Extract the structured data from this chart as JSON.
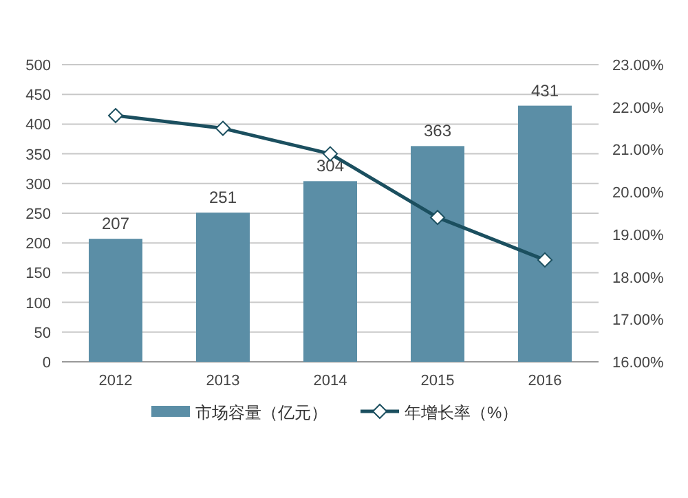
{
  "chart_data": {
    "type": "bar",
    "categories": [
      "2012",
      "2013",
      "2014",
      "2015",
      "2016"
    ],
    "series": [
      {
        "name": "市场容量（亿元）",
        "color": "#5b8ea6",
        "values": [
          207,
          251,
          304,
          363,
          431
        ],
        "value_labels": [
          "207",
          "251",
          "304",
          "363",
          "431"
        ]
      },
      {
        "name": "年增长率（%）",
        "type": "line",
        "axis": "y2",
        "color": "#1b4f5f",
        "marker": "diamond",
        "values": [
          21.8,
          21.5,
          20.9,
          19.4,
          18.4
        ]
      }
    ],
    "ylim": [
      0,
      500
    ],
    "yticks": [
      0,
      50,
      100,
      150,
      200,
      250,
      300,
      350,
      400,
      450,
      500
    ],
    "y2lim": [
      16,
      23
    ],
    "y2ticks": [
      {
        "value": 16,
        "label": "16.00%"
      },
      {
        "value": 17,
        "label": "17.00%"
      },
      {
        "value": 18,
        "label": "18.00%"
      },
      {
        "value": 19,
        "label": "19.00%"
      },
      {
        "value": 20,
        "label": "20.00%"
      },
      {
        "value": 21,
        "label": "21.00%"
      },
      {
        "value": 22,
        "label": "22.00%"
      },
      {
        "value": 23,
        "label": "23.00%"
      }
    ],
    "grid": "y",
    "legend": "bottom"
  }
}
